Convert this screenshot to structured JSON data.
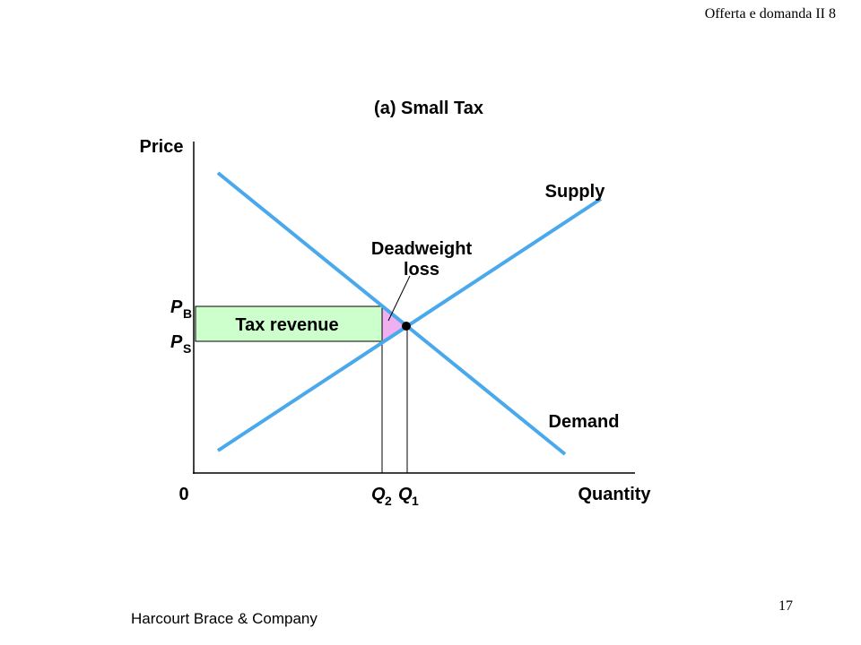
{
  "header": {
    "course": "Offerta e domanda II 8"
  },
  "diagram": {
    "title": "(a) Small Tax",
    "y_axis_label": "Price",
    "x_axis_label": "Quantity",
    "origin": "0",
    "supply_label": "Supply",
    "demand_label": "Demand",
    "deadweight_loss": [
      "Deadweight",
      "loss"
    ],
    "tax_revenue": "Tax revenue",
    "price_buyers": {
      "symbol": "P",
      "subscript": "B"
    },
    "price_sellers": {
      "symbol": "P",
      "subscript": "S"
    },
    "quantity_after_tax": {
      "symbol": "Q",
      "subscript": "2"
    },
    "quantity_before_tax": {
      "symbol": "Q",
      "subscript": "1"
    }
  },
  "footer": {
    "publisher": "Harcourt Brace & Company",
    "page": "17"
  }
}
